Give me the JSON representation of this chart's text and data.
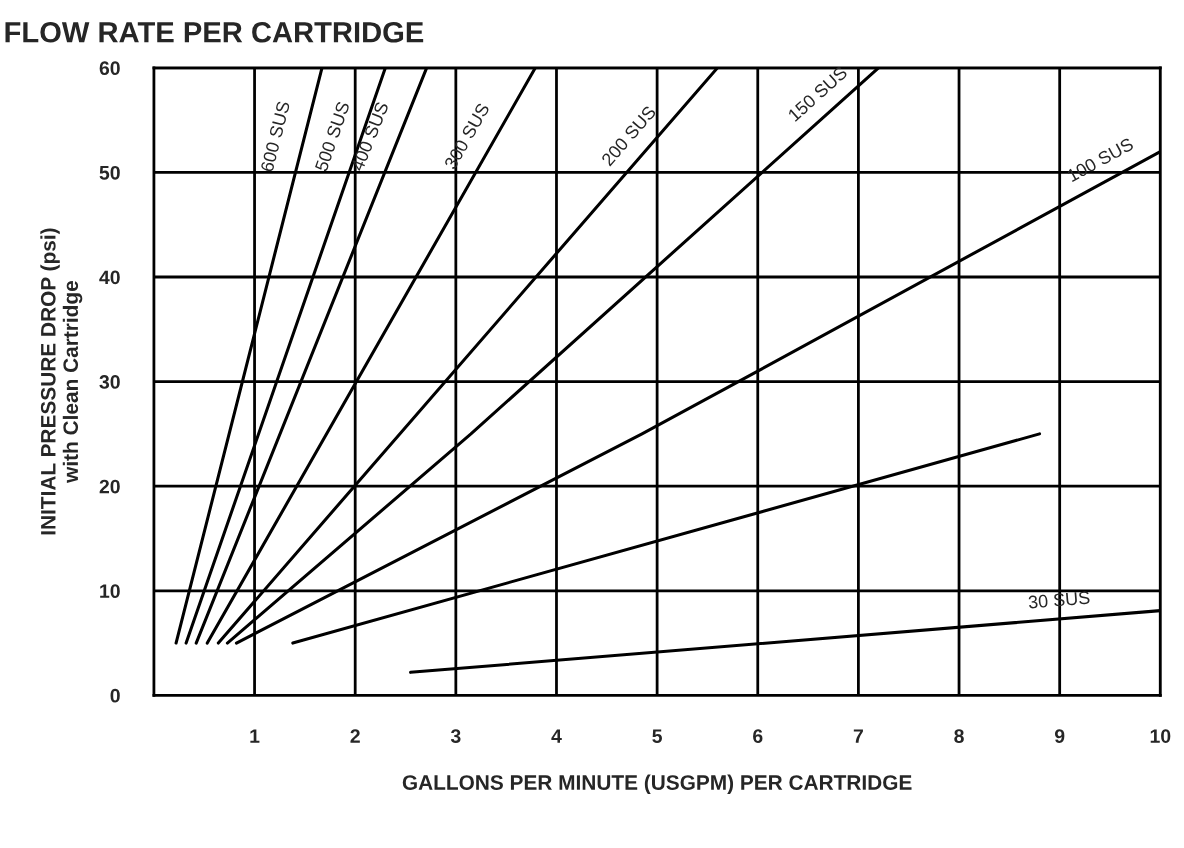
{
  "chart_data": {
    "type": "line",
    "title": "FLOW RATE PER CARTRIDGE",
    "xlabel": "GALLONS PER MINUTE (USGPM) PER CARTRIDGE",
    "ylabel": "INITIAL PRESSURE DROP (psi)\nwith Clean Cartridge",
    "series": [
      {
        "name": "600 SUS",
        "color": "#000000",
        "x": [
          0.22,
          1.67
        ],
        "values": [
          5,
          60
        ]
      },
      {
        "name": "500 SUS",
        "color": "#000000",
        "x": [
          0.32,
          2.3
        ],
        "values": [
          5,
          60
        ]
      },
      {
        "name": "400 SUS",
        "color": "#000000",
        "x": [
          0.42,
          2.71
        ],
        "values": [
          5,
          60
        ]
      },
      {
        "name": "300 SUS",
        "color": "#000000",
        "x": [
          0.53,
          3.79
        ],
        "values": [
          5,
          60
        ]
      },
      {
        "name": "200 SUS",
        "color": "#000000",
        "x": [
          0.64,
          5.6
        ],
        "values": [
          5,
          60
        ]
      },
      {
        "name": "150 SUS",
        "color": "#000000",
        "x": [
          0.73,
          3.15,
          7.2
        ],
        "values": [
          5,
          25,
          60
        ]
      },
      {
        "name": "100 SUS",
        "color": "#000000",
        "x": [
          0.82,
          4.85,
          6,
          10
        ],
        "values": [
          5,
          25,
          31,
          52
        ]
      },
      {
        "color": "#000000",
        "x": [
          1.38,
          8.8
        ],
        "values": [
          5,
          25
        ]
      },
      {
        "name": "30 SUS",
        "color": "#000000",
        "x": [
          2.55,
          10
        ],
        "values": [
          2.2,
          8.1
        ]
      }
    ],
    "xlim": [
      0,
      10
    ],
    "xticks": [
      1,
      2,
      3,
      4,
      5,
      6,
      7,
      8,
      9,
      10
    ],
    "ylim": [
      0,
      60
    ],
    "yticks": [
      0,
      10,
      20,
      30,
      40,
      50,
      60
    ],
    "grid": true,
    "legend": false,
    "marker": "none",
    "line_style": "solid"
  }
}
